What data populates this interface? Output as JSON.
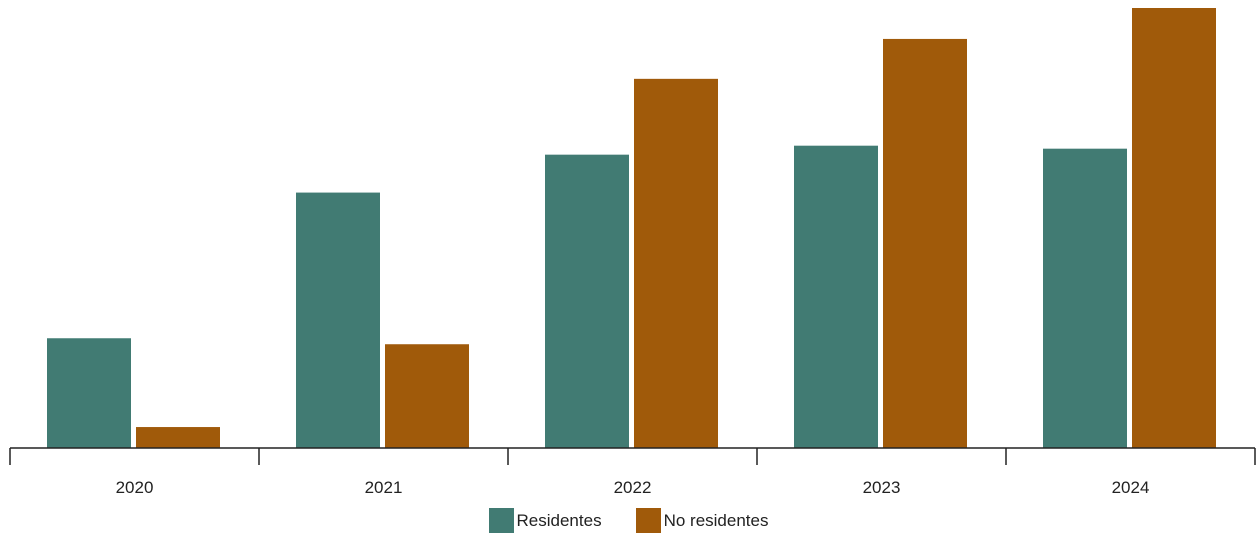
{
  "chart_data": {
    "type": "bar",
    "categories": [
      "2020",
      "2021",
      "2022",
      "2023",
      "2024"
    ],
    "series": [
      {
        "name": "Residentes",
        "values": [
          110,
          256,
          294,
          303,
          300
        ],
        "color": "#417b73"
      },
      {
        "name": "No residentes",
        "values": [
          21,
          104,
          370,
          410,
          441
        ],
        "color": "#a05a0a"
      }
    ],
    "ylim": [
      0,
      441
    ],
    "grid": false,
    "legend_position": "bottom-center"
  }
}
